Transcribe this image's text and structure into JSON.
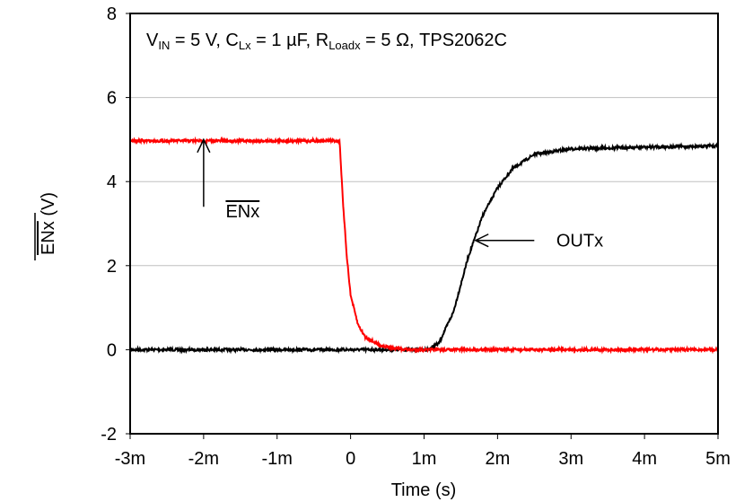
{
  "chart_data": {
    "type": "line",
    "title": "V_IN = 5 V, C_Lx = 1 µF, R_Loadx = 5 Ω, TPS2062C",
    "title_parts": {
      "v": "V",
      "v_sub": "IN",
      "a": " = 5 V, C",
      "c_sub": "Lx",
      "b": " = 1 µF, R",
      "r_sub": "Loadx",
      "c": " = 5 Ω, TPS2062C"
    },
    "xlabel": "Time (s)",
    "ylabel": "ENx (V)",
    "ylabel_overline_part": "ENx",
    "ylabel_rest": " (V)",
    "xlim": [
      -0.003,
      0.005
    ],
    "ylim": [
      -2,
      8
    ],
    "x_ticks": [
      -0.003,
      -0.002,
      -0.001,
      0,
      0.001,
      0.002,
      0.003,
      0.004,
      0.005
    ],
    "x_tick_labels": [
      "-3m",
      "-2m",
      "-1m",
      "0",
      "1m",
      "2m",
      "3m",
      "4m",
      "5m"
    ],
    "y_ticks": [
      -2,
      0,
      2,
      4,
      6,
      8
    ],
    "y_tick_labels": [
      "-2",
      "0",
      "2",
      "4",
      "6",
      "8"
    ],
    "grid": "horizontal",
    "series": [
      {
        "name": "ENx",
        "color": "#ff0000",
        "points": [
          [
            -0.003,
            4.97
          ],
          [
            -0.00015,
            4.97
          ],
          [
            -0.0001,
            3.4
          ],
          [
            -5e-05,
            2.2
          ],
          [
            0,
            1.3
          ],
          [
            0.0001,
            0.6
          ],
          [
            0.0002,
            0.3
          ],
          [
            0.0004,
            0.1
          ],
          [
            0.0006,
            0.03
          ],
          [
            0.0008,
            0
          ],
          [
            0.005,
            0
          ]
        ]
      },
      {
        "name": "OUTx",
        "color": "#000000",
        "points": [
          [
            -0.003,
            0
          ],
          [
            0.00105,
            0
          ],
          [
            0.0012,
            0.15
          ],
          [
            0.0014,
            0.9
          ],
          [
            0.0016,
            2.2
          ],
          [
            0.0017,
            2.7
          ],
          [
            0.0018,
            3.2
          ],
          [
            0.002,
            3.85
          ],
          [
            0.0022,
            4.3
          ],
          [
            0.0025,
            4.65
          ],
          [
            0.003,
            4.78
          ],
          [
            0.004,
            4.82
          ],
          [
            0.005,
            4.85
          ]
        ]
      }
    ],
    "annotations": [
      {
        "text": "ENx",
        "overline": true,
        "arrow_from": [
          -0.002,
          3.4
        ],
        "arrow_to": [
          -0.002,
          5.0
        ],
        "label_at": [
          -0.0017,
          3.3
        ]
      },
      {
        "text": "OUTx",
        "overline": false,
        "arrow_from": [
          0.0025,
          2.6
        ],
        "arrow_to": [
          0.0017,
          2.6
        ],
        "label_at": [
          0.0028,
          2.6
        ]
      }
    ]
  }
}
